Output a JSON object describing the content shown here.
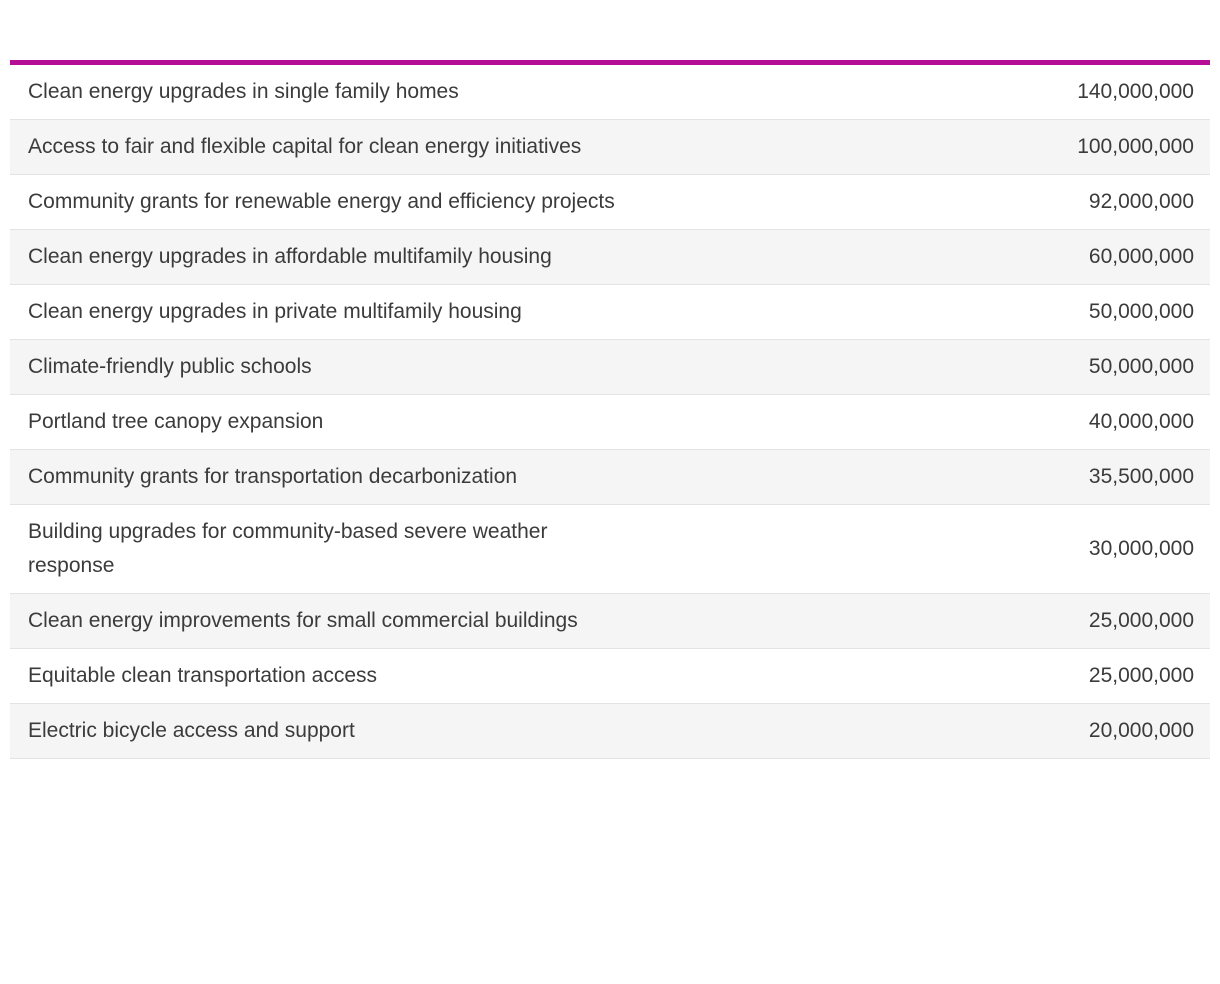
{
  "table": {
    "accent_color": "#b50d96",
    "row_stripe_color": "#f5f5f5",
    "text_color": "#3b3b3b",
    "rows": [
      {
        "label": "Clean energy upgrades in single family homes",
        "value": "140,000,000"
      },
      {
        "label": "Access to fair and flexible capital for clean energy initiatives",
        "value": "100,000,000"
      },
      {
        "label": "Community grants for renewable energy and efficiency projects",
        "value": "92,000,000"
      },
      {
        "label": "Clean energy upgrades in affordable multifamily housing",
        "value": "60,000,000"
      },
      {
        "label": "Clean energy upgrades in private multifamily housing",
        "value": "50,000,000"
      },
      {
        "label": "Climate-friendly public schools",
        "value": "50,000,000"
      },
      {
        "label": "Portland tree canopy expansion",
        "value": "40,000,000"
      },
      {
        "label": "Community grants for transportation decarbonization",
        "value": "35,500,000"
      },
      {
        "label": "Building upgrades for community-based severe weather response",
        "value": "30,000,000"
      },
      {
        "label": "Clean energy improvements for small commercial buildings",
        "value": "25,000,000"
      },
      {
        "label": "Equitable clean transportation access",
        "value": "25,000,000"
      },
      {
        "label": "Electric bicycle access and support",
        "value": "20,000,000"
      }
    ]
  },
  "chart_data": {
    "type": "table",
    "categories": [
      "Clean energy upgrades in single family homes",
      "Access to fair and flexible capital for clean energy initiatives",
      "Community grants for renewable energy and efficiency projects",
      "Clean energy upgrades in affordable multifamily housing",
      "Clean energy upgrades in private multifamily housing",
      "Climate-friendly public schools",
      "Portland tree canopy expansion",
      "Community grants for transportation decarbonization",
      "Building upgrades for community-based severe weather response",
      "Clean energy improvements for small commercial buildings",
      "Equitable clean transportation access",
      "Electric bicycle access and support"
    ],
    "values": [
      140000000,
      100000000,
      92000000,
      60000000,
      50000000,
      50000000,
      40000000,
      35500000,
      30000000,
      25000000,
      25000000,
      20000000
    ],
    "title": "",
    "layout_hints": {
      "stripes": true,
      "value_alignment": "right",
      "top_rule_color": "#b50d96"
    }
  }
}
